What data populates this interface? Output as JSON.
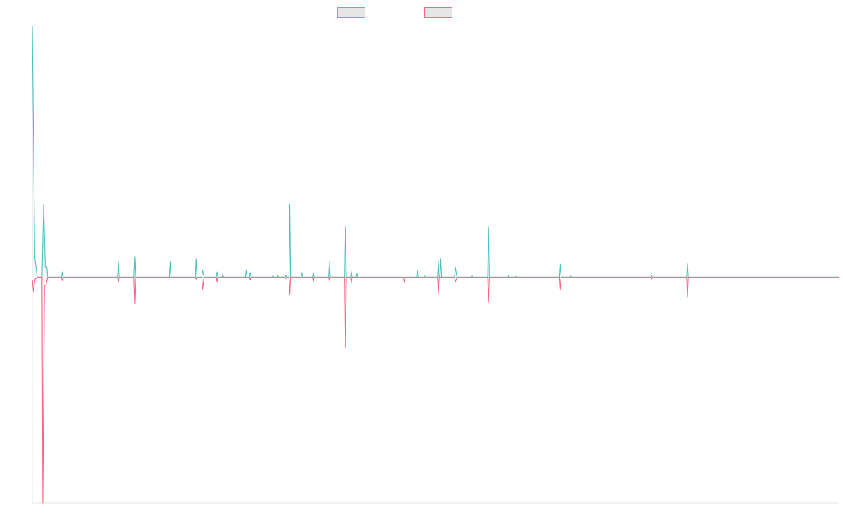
{
  "chart_data": {
    "type": "line",
    "title": "",
    "xlabel": "",
    "ylabel": "",
    "grid": false,
    "legend_position": "top-center",
    "ylim": [
      -0.45,
      0.5
    ],
    "baseline": 0,
    "series": [
      {
        "name": "",
        "color": "#4bc0c0",
        "fill": "#e6e6e6",
        "points": [
          [
            0.0,
            0.5
          ],
          [
            0.3,
            0.04
          ],
          [
            0.6,
            0.0
          ],
          [
            1.2,
            0.0
          ],
          [
            1.4,
            0.145
          ],
          [
            1.6,
            0.02
          ],
          [
            1.8,
            0.02
          ],
          [
            1.9,
            0.0
          ],
          [
            3.6,
            0.0
          ],
          [
            3.7,
            0.01
          ],
          [
            3.8,
            0.0
          ],
          [
            10.6,
            0.0
          ],
          [
            10.7,
            0.03
          ],
          [
            10.8,
            0.0
          ],
          [
            12.6,
            0.0
          ],
          [
            12.7,
            0.04
          ],
          [
            12.8,
            0.0
          ],
          [
            17.0,
            0.0
          ],
          [
            17.1,
            0.03
          ],
          [
            17.2,
            0.0
          ],
          [
            20.2,
            0.0
          ],
          [
            20.3,
            0.037
          ],
          [
            20.4,
            0.0
          ],
          [
            21.0,
            0.0
          ],
          [
            21.1,
            0.014
          ],
          [
            21.3,
            0.0
          ],
          [
            22.8,
            0.0
          ],
          [
            22.9,
            0.01
          ],
          [
            23.0,
            0.0
          ],
          [
            23.5,
            0.0
          ],
          [
            23.6,
            0.005
          ],
          [
            23.7,
            0.0
          ],
          [
            26.4,
            0.0
          ],
          [
            26.5,
            0.014
          ],
          [
            26.6,
            0.0
          ],
          [
            26.9,
            0.0
          ],
          [
            27.0,
            0.009
          ],
          [
            27.1,
            0.0
          ],
          [
            29.7,
            0.0
          ],
          [
            29.8,
            0.003
          ],
          [
            29.9,
            0.0
          ],
          [
            30.3,
            0.0
          ],
          [
            30.4,
            0.004
          ],
          [
            30.5,
            0.0
          ],
          [
            31.3,
            0.0
          ],
          [
            31.4,
            0.003
          ],
          [
            31.5,
            0.0
          ],
          [
            31.8,
            0.0
          ],
          [
            31.9,
            0.145
          ],
          [
            32.0,
            0.0
          ],
          [
            33.3,
            0.0
          ],
          [
            33.4,
            0.009
          ],
          [
            33.5,
            0.0
          ],
          [
            34.7,
            0.0
          ],
          [
            34.8,
            0.01
          ],
          [
            34.9,
            0.0
          ],
          [
            36.7,
            0.0
          ],
          [
            36.8,
            0.03
          ],
          [
            36.9,
            0.0
          ],
          [
            38.7,
            0.0
          ],
          [
            38.8,
            0.1
          ],
          [
            38.9,
            0.0
          ],
          [
            39.4,
            0.0
          ],
          [
            39.5,
            0.011
          ],
          [
            39.6,
            0.0
          ],
          [
            40.1,
            0.0
          ],
          [
            40.2,
            0.007
          ],
          [
            40.3,
            0.0
          ],
          [
            47.6,
            0.0
          ],
          [
            47.7,
            0.014
          ],
          [
            47.8,
            0.0
          ],
          [
            48.5,
            0.0
          ],
          [
            48.6,
            0.002
          ],
          [
            48.7,
            0.0
          ],
          [
            50.2,
            0.0
          ],
          [
            50.3,
            0.03
          ],
          [
            50.4,
            0.0
          ],
          [
            50.5,
            0.0
          ],
          [
            50.6,
            0.037
          ],
          [
            50.7,
            0.0
          ],
          [
            52.3,
            0.0
          ],
          [
            52.4,
            0.02
          ],
          [
            52.6,
            0.0
          ],
          [
            54.4,
            0.0
          ],
          [
            54.5,
            0.002
          ],
          [
            54.6,
            0.0
          ],
          [
            56.4,
            0.0
          ],
          [
            56.5,
            0.1
          ],
          [
            56.6,
            0.0
          ],
          [
            58.9,
            0.0
          ],
          [
            59.0,
            0.003
          ],
          [
            59.1,
            0.0
          ],
          [
            59.8,
            0.0
          ],
          [
            59.9,
            0.002
          ],
          [
            60.0,
            0.0
          ],
          [
            65.3,
            0.0
          ],
          [
            65.4,
            0.025
          ],
          [
            65.5,
            0.0
          ],
          [
            66.6,
            0.0
          ],
          [
            66.7,
            0.002
          ],
          [
            66.8,
            0.0
          ],
          [
            76.6,
            0.0
          ],
          [
            76.7,
            0.003
          ],
          [
            76.8,
            0.0
          ],
          [
            81.1,
            0.0
          ],
          [
            81.2,
            0.026
          ],
          [
            81.3,
            0.0
          ],
          [
            83.0,
            0.0
          ],
          [
            100.0,
            0.0
          ]
        ]
      },
      {
        "name": "",
        "color": "#ff6384",
        "fill": "#e6e6e6",
        "points": [
          [
            0.0,
            -0.006
          ],
          [
            0.15,
            -0.03
          ],
          [
            0.3,
            -0.005
          ],
          [
            0.6,
            0.0
          ],
          [
            1.2,
            0.0
          ],
          [
            1.3,
            -0.45
          ],
          [
            1.5,
            -0.018
          ],
          [
            1.7,
            -0.015
          ],
          [
            1.9,
            0.0
          ],
          [
            3.6,
            0.0
          ],
          [
            3.7,
            -0.007
          ],
          [
            3.8,
            0.0
          ],
          [
            10.6,
            0.0
          ],
          [
            10.7,
            -0.01
          ],
          [
            10.8,
            0.0
          ],
          [
            12.6,
            0.0
          ],
          [
            12.7,
            -0.052
          ],
          [
            12.8,
            0.0
          ],
          [
            20.2,
            0.0
          ],
          [
            20.3,
            -0.004
          ],
          [
            20.4,
            0.0
          ],
          [
            21.0,
            0.0
          ],
          [
            21.1,
            -0.025
          ],
          [
            21.3,
            0.0
          ],
          [
            22.8,
            0.0
          ],
          [
            22.9,
            -0.01
          ],
          [
            23.0,
            0.0
          ],
          [
            26.9,
            0.0
          ],
          [
            27.0,
            -0.006
          ],
          [
            27.1,
            0.0
          ],
          [
            31.3,
            0.0
          ],
          [
            31.4,
            -0.003
          ],
          [
            31.5,
            0.0
          ],
          [
            31.8,
            0.0
          ],
          [
            31.9,
            -0.035
          ],
          [
            32.0,
            0.0
          ],
          [
            34.7,
            0.0
          ],
          [
            34.8,
            -0.01
          ],
          [
            34.9,
            0.0
          ],
          [
            36.7,
            0.0
          ],
          [
            36.8,
            -0.008
          ],
          [
            36.9,
            0.0
          ],
          [
            38.7,
            0.0
          ],
          [
            38.8,
            -0.14
          ],
          [
            38.9,
            0.0
          ],
          [
            39.4,
            0.0
          ],
          [
            39.5,
            -0.012
          ],
          [
            39.6,
            0.0
          ],
          [
            46.0,
            0.0
          ],
          [
            46.1,
            -0.011
          ],
          [
            46.2,
            0.0
          ],
          [
            48.5,
            0.0
          ],
          [
            48.6,
            -0.002
          ],
          [
            48.7,
            0.0
          ],
          [
            50.2,
            0.0
          ],
          [
            50.3,
            -0.034
          ],
          [
            50.4,
            0.0
          ],
          [
            52.3,
            0.0
          ],
          [
            52.4,
            -0.01
          ],
          [
            52.6,
            0.0
          ],
          [
            56.4,
            0.0
          ],
          [
            56.5,
            -0.05
          ],
          [
            56.6,
            0.0
          ],
          [
            59.8,
            0.0
          ],
          [
            59.9,
            -0.002
          ],
          [
            60.0,
            0.0
          ],
          [
            65.3,
            0.0
          ],
          [
            65.4,
            -0.025
          ],
          [
            65.5,
            0.0
          ],
          [
            76.6,
            0.0
          ],
          [
            76.7,
            -0.004
          ],
          [
            76.8,
            0.0
          ],
          [
            81.1,
            0.0
          ],
          [
            81.2,
            -0.04
          ],
          [
            81.3,
            0.0
          ],
          [
            83.0,
            0.0
          ],
          [
            100.0,
            0.0
          ]
        ]
      }
    ]
  }
}
